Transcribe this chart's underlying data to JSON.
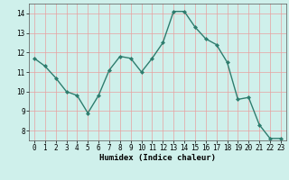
{
  "x": [
    0,
    1,
    2,
    3,
    4,
    5,
    6,
    7,
    8,
    9,
    10,
    11,
    12,
    13,
    14,
    15,
    16,
    17,
    18,
    19,
    20,
    21,
    22,
    23
  ],
  "y": [
    11.7,
    11.3,
    10.7,
    10.0,
    9.8,
    8.9,
    9.8,
    11.1,
    11.8,
    11.7,
    11.0,
    11.7,
    12.5,
    14.1,
    14.1,
    13.3,
    12.7,
    12.4,
    11.5,
    9.6,
    9.7,
    8.3,
    7.6,
    7.6
  ],
  "line_color": "#2e7d6e",
  "marker": "D",
  "marker_size": 2.0,
  "bg_color": "#cff0eb",
  "grid_color": "#e8a0a0",
  "xlabel": "Humidex (Indice chaleur)",
  "xlim": [
    -0.5,
    23.5
  ],
  "ylim": [
    7.5,
    14.5
  ],
  "yticks": [
    8,
    9,
    10,
    11,
    12,
    13,
    14
  ],
  "xticks": [
    0,
    1,
    2,
    3,
    4,
    5,
    6,
    7,
    8,
    9,
    10,
    11,
    12,
    13,
    14,
    15,
    16,
    17,
    18,
    19,
    20,
    21,
    22,
    23
  ],
  "xlabel_fontsize": 6.5,
  "tick_fontsize": 5.5,
  "line_width": 1.0,
  "spine_color": "#555555"
}
